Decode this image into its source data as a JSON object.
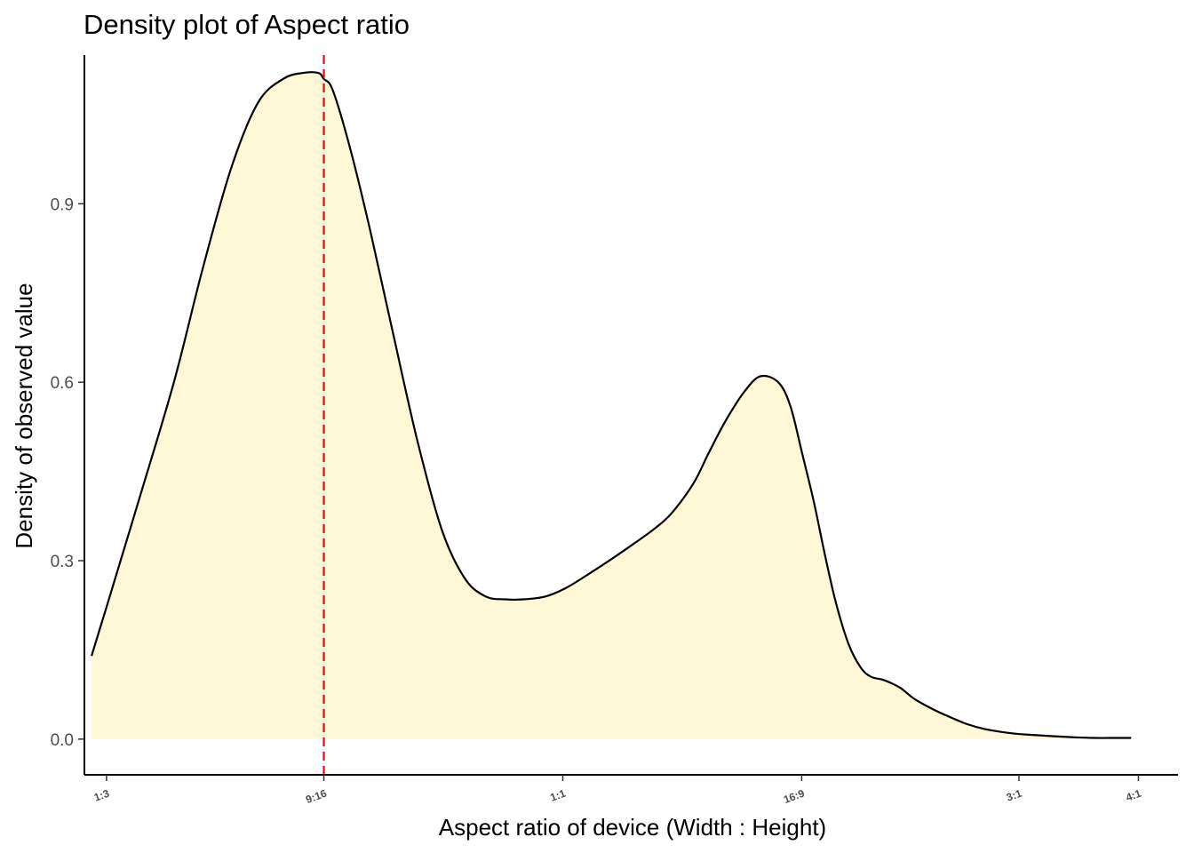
{
  "chart_data": {
    "type": "area",
    "title": "Density plot of Aspect ratio",
    "xlabel": "Aspect ratio of device (Width : Height)",
    "ylabel": "Density of observed value",
    "x_scale": "log",
    "xlim": [
      0.316,
      4.4
    ],
    "ylim": [
      -0.06,
      1.15
    ],
    "x_ticks": [
      {
        "label": "1:3",
        "value": 0.3333
      },
      {
        "label": "9:16",
        "value": 0.5625
      },
      {
        "label": "1:1",
        "value": 1.0
      },
      {
        "label": "16:9",
        "value": 1.7778
      },
      {
        "label": "3:1",
        "value": 3.0
      },
      {
        "label": "4:1",
        "value": 4.0
      }
    ],
    "y_ticks": [
      {
        "label": "0.0",
        "value": 0.0
      },
      {
        "label": "0.3",
        "value": 0.3
      },
      {
        "label": "0.6",
        "value": 0.6
      },
      {
        "label": "0.9",
        "value": 0.9
      }
    ],
    "series": [
      {
        "x": [
          0.3215,
          0.333,
          0.36,
          0.392,
          0.42,
          0.45,
          0.48,
          0.51,
          0.535,
          0.555,
          0.5625,
          0.575,
          0.6,
          0.63,
          0.665,
          0.705,
          0.748,
          0.79,
          0.83,
          0.87,
          0.91,
          0.96,
          1.01,
          1.07,
          1.13,
          1.19,
          1.25,
          1.3,
          1.37,
          1.42,
          1.48,
          1.55,
          1.61,
          1.68,
          1.73,
          1.78,
          1.83,
          1.88,
          1.93,
          1.99,
          2.05,
          2.1,
          2.16,
          2.2,
          2.26,
          2.33,
          2.44,
          2.55,
          2.65,
          2.76,
          2.88,
          2.98,
          3.1,
          3.25,
          3.43,
          3.6,
          3.78,
          3.93
        ],
        "y": [
          0.14,
          0.22,
          0.4,
          0.6,
          0.79,
          0.96,
          1.07,
          1.11,
          1.12,
          1.12,
          1.11,
          1.09,
          0.99,
          0.85,
          0.68,
          0.5,
          0.35,
          0.27,
          0.24,
          0.235,
          0.235,
          0.24,
          0.255,
          0.28,
          0.305,
          0.33,
          0.355,
          0.38,
          0.43,
          0.48,
          0.535,
          0.585,
          0.61,
          0.6,
          0.56,
          0.48,
          0.4,
          0.31,
          0.23,
          0.16,
          0.12,
          0.105,
          0.1,
          0.095,
          0.085,
          0.068,
          0.05,
          0.036,
          0.025,
          0.017,
          0.012,
          0.009,
          0.007,
          0.005,
          0.003,
          0.002,
          0.002,
          0.002
        ],
        "fill": "#fff7d6",
        "line_color": "#000000"
      }
    ],
    "reference_line": {
      "x": 0.5625,
      "color": "#ff0000",
      "style": "dashed"
    },
    "grid": false,
    "legend": "none"
  }
}
